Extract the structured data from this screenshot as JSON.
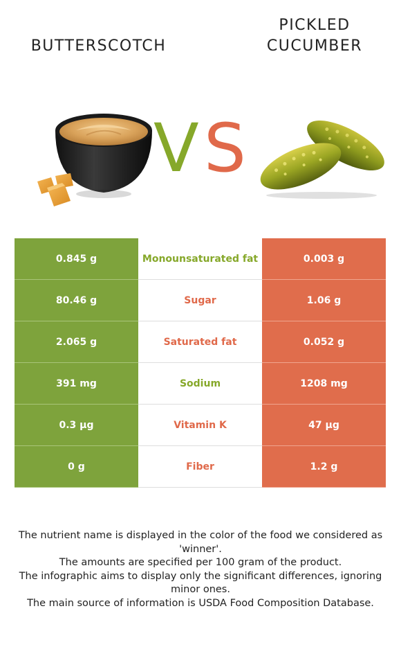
{
  "foods": {
    "left": {
      "name": "BUTTERSCOTCH",
      "color": "#86a82a"
    },
    "right": {
      "name": "PICKLED\nCUCUMBER",
      "color": "#e0694a"
    }
  },
  "vs": {
    "v": "V",
    "s": "S"
  },
  "rows": [
    {
      "left": "0.845 g",
      "nutrient": "Monounsaturated fat",
      "right": "0.003 g",
      "winner": "left"
    },
    {
      "left": "80.46 g",
      "nutrient": "Sugar",
      "right": "1.06 g",
      "winner": "right"
    },
    {
      "left": "2.065 g",
      "nutrient": "Saturated fat",
      "right": "0.052 g",
      "winner": "right"
    },
    {
      "left": "391 mg",
      "nutrient": "Sodium",
      "right": "1208 mg",
      "winner": "left"
    },
    {
      "left": "0.3 µg",
      "nutrient": "Vitamin K",
      "right": "47 µg",
      "winner": "right"
    },
    {
      "left": "0 g",
      "nutrient": "Fiber",
      "right": "1.2 g",
      "winner": "right"
    }
  ],
  "footnotes": [
    "The nutrient name is displayed in the color of the food we considered as 'winner'.",
    "The amounts are specified per 100 gram of the product.",
    "The infographic aims to display only the significant differences, ignoring minor ones.",
    "The main source of information is USDA Food Composition Database."
  ],
  "images": {
    "left": "butterscotch-bowl-image",
    "right": "pickled-cucumber-image"
  }
}
